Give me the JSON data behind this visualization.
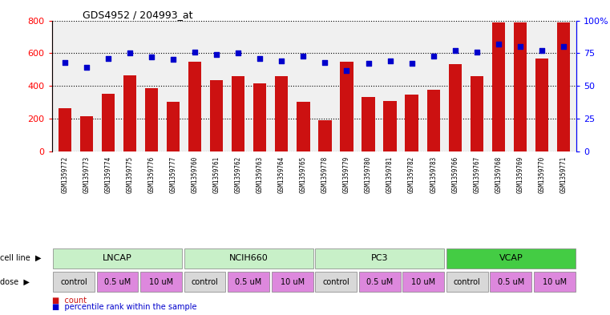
{
  "title": "GDS4952 / 204993_at",
  "samples": [
    "GSM1359772",
    "GSM1359773",
    "GSM1359774",
    "GSM1359775",
    "GSM1359776",
    "GSM1359777",
    "GSM1359760",
    "GSM1359761",
    "GSM1359762",
    "GSM1359763",
    "GSM1359764",
    "GSM1359765",
    "GSM1359778",
    "GSM1359779",
    "GSM1359780",
    "GSM1359781",
    "GSM1359782",
    "GSM1359783",
    "GSM1359766",
    "GSM1359767",
    "GSM1359768",
    "GSM1359769",
    "GSM1359770",
    "GSM1359771"
  ],
  "counts": [
    265,
    215,
    350,
    465,
    385,
    300,
    550,
    435,
    460,
    415,
    460,
    300,
    190,
    550,
    330,
    305,
    345,
    375,
    535,
    460,
    790,
    790,
    565,
    790
  ],
  "percentiles": [
    68,
    64,
    71,
    75,
    72,
    70,
    76,
    74,
    75,
    71,
    69,
    73,
    68,
    62,
    67,
    69,
    67,
    73,
    77,
    76,
    82,
    80,
    77,
    80
  ],
  "cell_lines": [
    "LNCAP",
    "NCIH660",
    "PC3",
    "VCAP"
  ],
  "cell_line_spans": [
    [
      0,
      6
    ],
    [
      6,
      12
    ],
    [
      12,
      18
    ],
    [
      18,
      24
    ]
  ],
  "cl_colors": [
    "#c8f0c8",
    "#c8f0c8",
    "#c8f0c8",
    "#44cc44"
  ],
  "dose_groups": [
    {
      "label": "control",
      "span": [
        0,
        2
      ],
      "color": "#d8d8d8"
    },
    {
      "label": "0.5 uM",
      "span": [
        2,
        4
      ],
      "color": "#dd88dd"
    },
    {
      "label": "10 uM",
      "span": [
        4,
        6
      ],
      "color": "#dd88dd"
    },
    {
      "label": "control",
      "span": [
        6,
        8
      ],
      "color": "#d8d8d8"
    },
    {
      "label": "0.5 uM",
      "span": [
        8,
        10
      ],
      "color": "#dd88dd"
    },
    {
      "label": "10 uM",
      "span": [
        10,
        12
      ],
      "color": "#dd88dd"
    },
    {
      "label": "control",
      "span": [
        12,
        14
      ],
      "color": "#d8d8d8"
    },
    {
      "label": "0.5 uM",
      "span": [
        14,
        16
      ],
      "color": "#dd88dd"
    },
    {
      "label": "10 uM",
      "span": [
        16,
        18
      ],
      "color": "#dd88dd"
    },
    {
      "label": "control",
      "span": [
        18,
        20
      ],
      "color": "#d8d8d8"
    },
    {
      "label": "0.5 uM",
      "span": [
        20,
        22
      ],
      "color": "#dd88dd"
    },
    {
      "label": "10 uM",
      "span": [
        22,
        24
      ],
      "color": "#dd88dd"
    }
  ],
  "bar_color": "#cc1111",
  "dot_color": "#0000cc",
  "ylim_left": [
    0,
    800
  ],
  "ylim_right": [
    0,
    100
  ],
  "yticks_left": [
    0,
    200,
    400,
    600,
    800
  ],
  "yticks_right": [
    0,
    25,
    50,
    75,
    100
  ],
  "plot_bg_color": "#f0f0f0",
  "label_bg_color": "#c8c8c8"
}
